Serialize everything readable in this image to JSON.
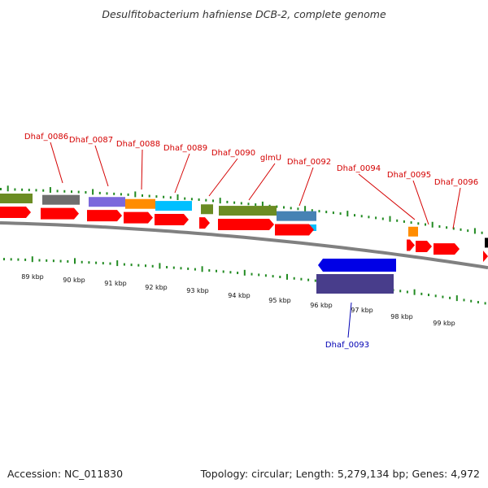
{
  "title": "Desulfitobacterium hafniense DCB-2, complete genome",
  "footer": {
    "accession": "Accession: NC_011830",
    "stats": "Topology: circular; Length: 5,279,134 bp; Genes: 4,972"
  },
  "colors": {
    "forward_label": "#d40000",
    "reverse_label": "#0000b4",
    "cds_red": "#ff0000",
    "cds_blue": "#0000e6",
    "cog_olive": "#6b8c23",
    "cog_grey": "#6e6e6e",
    "cog_purple": "#7b68dc",
    "cog_orange": "#ff8c00",
    "cog_cyan": "#00bfff",
    "cog_steel": "#4682b4",
    "cog_slate": "#483d8b",
    "backbone": "#808080",
    "ticks": "#228b22"
  },
  "kbp_ticks": [
    "89 kbp",
    "90 kbp",
    "91 kbp",
    "92 kbp",
    "93 kbp",
    "94 kbp",
    "95 kbp",
    "96 kbp",
    "97 kbp",
    "98 kbp",
    "99 kbp"
  ],
  "genes": [
    {
      "label": "Dhaf_0086",
      "strand": "forward"
    },
    {
      "label": "Dhaf_0087",
      "strand": "forward"
    },
    {
      "label": "Dhaf_0088",
      "strand": "forward"
    },
    {
      "label": "Dhaf_0089",
      "strand": "forward"
    },
    {
      "label": "Dhaf_0090",
      "strand": "forward"
    },
    {
      "label": "glmU",
      "strand": "forward"
    },
    {
      "label": "Dhaf_0092",
      "strand": "forward"
    },
    {
      "label": "Dhaf_0093",
      "strand": "reverse"
    },
    {
      "label": "Dhaf_0094",
      "strand": "forward"
    },
    {
      "label": "Dhaf_0095",
      "strand": "forward"
    },
    {
      "label": "Dhaf_0096",
      "strand": "forward"
    }
  ]
}
